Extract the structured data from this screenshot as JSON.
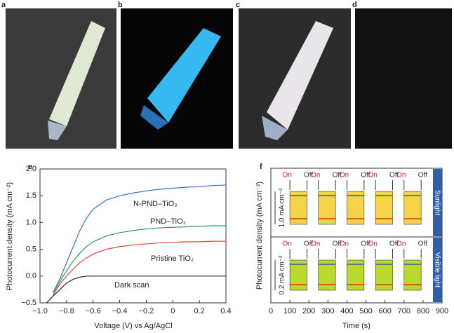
{
  "figure_labels": [
    "a",
    "b",
    "c",
    "d",
    "e",
    "f"
  ],
  "chart_data": [
    {
      "type": "line",
      "x_label": "Voltage (V) vs Ag/AgCl",
      "y_label": "Photocurrent density (mA cm⁻²)",
      "x": [
        -0.95,
        -0.9,
        -0.85,
        -0.8,
        -0.75,
        -0.7,
        -0.65,
        -0.6,
        -0.5,
        -0.4,
        -0.3,
        -0.2,
        -0.1,
        0,
        0.1,
        0.2,
        0.3,
        0.4
      ],
      "series": [
        {
          "name": "N-PND–TiO₂",
          "color": "#3a6fc4",
          "values": [
            null,
            -0.3,
            -0.05,
            0.25,
            0.55,
            0.85,
            1.08,
            1.25,
            1.42,
            1.5,
            1.55,
            1.59,
            1.62,
            1.64,
            1.66,
            1.67,
            1.69,
            1.7
          ]
        },
        {
          "name": "PND–TiO₂",
          "color": "#1fa060",
          "values": [
            null,
            -0.32,
            -0.1,
            0.1,
            0.28,
            0.43,
            0.55,
            0.64,
            0.75,
            0.81,
            0.85,
            0.88,
            0.9,
            0.91,
            0.92,
            0.93,
            0.94,
            0.94
          ]
        },
        {
          "name": "Pristine TiO₂",
          "color": "#e8453c",
          "values": [
            null,
            -0.35,
            -0.15,
            0,
            0.13,
            0.25,
            0.34,
            0.41,
            0.5,
            0.55,
            0.58,
            0.6,
            0.62,
            0.63,
            0.64,
            0.64,
            0.65,
            0.65
          ]
        },
        {
          "name": "Dark scan",
          "color": "#222222",
          "values": [
            -0.5,
            -0.37,
            -0.25,
            -0.13,
            -0.06,
            -0.02,
            0,
            0,
            0,
            0,
            0,
            0,
            0,
            0,
            0,
            0,
            0,
            0
          ]
        }
      ],
      "xlim": [
        -1,
        0.4
      ],
      "xticks": [
        {
          "value": -1,
          "label": "−1.0"
        },
        {
          "value": -0.8,
          "label": "−0.8"
        },
        {
          "value": -0.6,
          "label": "−0.6"
        },
        {
          "value": -0.4,
          "label": "−0.4"
        },
        {
          "value": -0.2,
          "label": "−0.2"
        },
        0,
        0.2,
        0.4
      ],
      "ylim": [
        -0.5,
        2
      ],
      "yticks": [
        {
          "value": -0.5,
          "label": "−0.5"
        },
        {
          "value": 0,
          "label": "0.0"
        },
        0.5,
        {
          "value": 1,
          "label": "1.0"
        },
        1.5,
        {
          "value": 2,
          "label": "2.0"
        }
      ]
    },
    {
      "type": "on-off",
      "x_label": "Time (s)",
      "y_label": "Photocurrent density (mA cm⁻²)",
      "on_label": "On",
      "off_label": "Off",
      "intervals": [
        [
          100,
          190
        ],
        [
          250,
          340
        ],
        [
          400,
          490
        ],
        [
          550,
          640
        ],
        [
          700,
          790
        ]
      ],
      "panels": [
        {
          "name": "Sunlight",
          "scale_bar": "1.0 mA cm⁻²",
          "color": "#f5d44a"
        },
        {
          "name": "Visible light",
          "scale_bar": "0.2 mA cm⁻²",
          "color": "#b9d92c"
        }
      ],
      "xlim": [
        0,
        900
      ],
      "xticks": [
        0,
        100,
        200,
        300,
        400,
        500,
        600,
        700,
        800,
        900
      ]
    }
  ]
}
